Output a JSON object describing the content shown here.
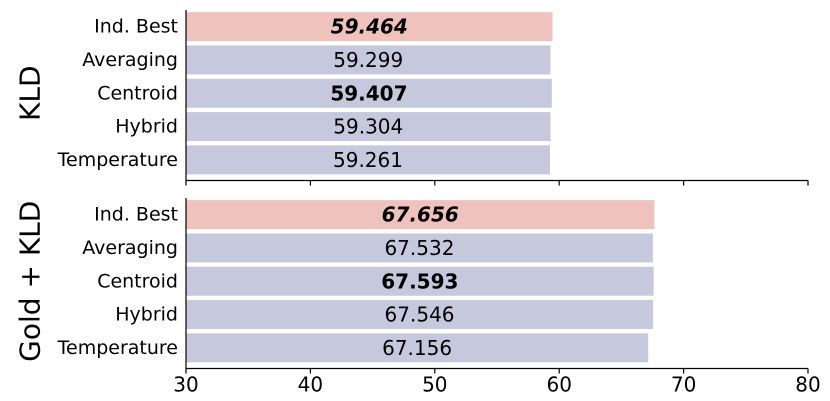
{
  "colors": {
    "highlight": "#efc2bd",
    "default": "#c6c9de"
  },
  "chart_data": [
    {
      "type": "bar",
      "orientation": "horizontal",
      "group_label": "KLD",
      "categories": [
        "Ind. Best",
        "Averaging",
        "Centroid",
        "Hybrid",
        "Temperature"
      ],
      "values": [
        59.464,
        59.299,
        59.407,
        59.304,
        59.261
      ],
      "value_labels": [
        "59.464",
        "59.299",
        "59.407",
        "59.304",
        "59.261"
      ],
      "label_styles": [
        "bold-italic",
        "normal",
        "bold",
        "normal",
        "normal"
      ],
      "bar_colors": [
        "highlight",
        "default",
        "default",
        "default",
        "default"
      ],
      "xlim": [
        30,
        80
      ],
      "xticks": [],
      "show_tick_marks": true,
      "grid": false
    },
    {
      "type": "bar",
      "orientation": "horizontal",
      "group_label": "Gold + KLD",
      "categories": [
        "Ind. Best",
        "Averaging",
        "Centroid",
        "Hybrid",
        "Temperature"
      ],
      "values": [
        67.656,
        67.532,
        67.593,
        67.546,
        67.156
      ],
      "value_labels": [
        "67.656",
        "67.532",
        "67.593",
        "67.546",
        "67.156"
      ],
      "label_styles": [
        "bold-italic",
        "normal",
        "bold",
        "normal",
        "normal"
      ],
      "bar_colors": [
        "highlight",
        "default",
        "default",
        "default",
        "default"
      ],
      "xlim": [
        30,
        80
      ],
      "xticks": [
        "30",
        "40",
        "50",
        "60",
        "70",
        "80"
      ],
      "show_tick_marks": true,
      "grid": false
    }
  ]
}
